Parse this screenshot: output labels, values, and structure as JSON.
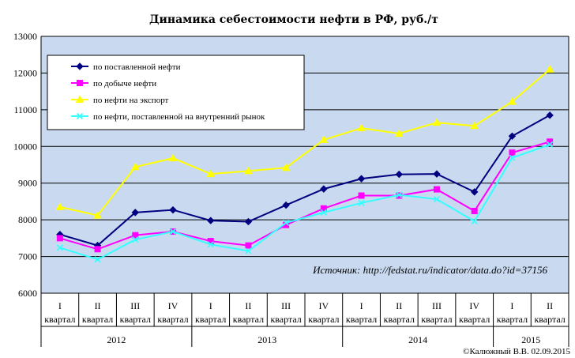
{
  "chart_data": {
    "type": "line",
    "title": "Динамика себестоимости нефти в РФ, руб./т",
    "ylim": [
      6000,
      13000
    ],
    "yticks": [
      "6000",
      "7000",
      "8000",
      "9000",
      "10000",
      "11000",
      "12000",
      "13000"
    ],
    "quarter_labels": [
      "I",
      "II",
      "III",
      "IV",
      "I",
      "II",
      "III",
      "IV",
      "I",
      "II",
      "III",
      "IV",
      "I",
      "II"
    ],
    "period_word": "квартал",
    "years": [
      {
        "label": "2012",
        "count": 4
      },
      {
        "label": "2013",
        "count": 4
      },
      {
        "label": "2014",
        "count": 4
      },
      {
        "label": "2015",
        "count": 2
      }
    ],
    "series": [
      {
        "name": "по поставленной нефти",
        "color": "#000080",
        "marker": "diamond",
        "values": [
          7600,
          7300,
          8200,
          8270,
          7980,
          7950,
          8400,
          8840,
          9120,
          9240,
          9250,
          8760,
          10280,
          10850
        ]
      },
      {
        "name": "по добыче нефти",
        "color": "#ff00ff",
        "marker": "square",
        "values": [
          7500,
          7200,
          7580,
          7680,
          7420,
          7300,
          7860,
          8310,
          8660,
          8660,
          8830,
          8240,
          9830,
          10130
        ]
      },
      {
        "name": "по нефти на экспорт",
        "color": "#ffff00",
        "marker": "triangle",
        "values": [
          8350,
          8120,
          9440,
          9680,
          9250,
          9330,
          9420,
          10180,
          10500,
          10350,
          10650,
          10560,
          11220,
          12100
        ]
      },
      {
        "name": "по нефти, поставленной на внутренний рынок",
        "color": "#33ffff",
        "marker": "cross",
        "values": [
          7240,
          6920,
          7460,
          7680,
          7330,
          7150,
          7920,
          8200,
          8460,
          8680,
          8560,
          7960,
          9690,
          10050
        ]
      }
    ],
    "legend_position": "top-left",
    "grid": true,
    "annotation": "Источник: http://fedstat.ru/indicator/data.do?id=37156"
  },
  "copyright": "©Калюжный В.В. 02.09.2015",
  "colors": {
    "plot_bg": "#c9daf0",
    "grid": "#000000"
  }
}
